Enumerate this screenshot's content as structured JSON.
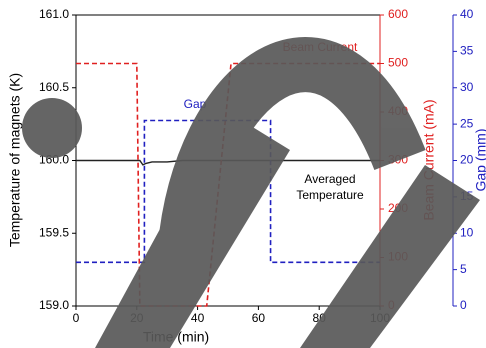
{
  "chart_data": {
    "type": "line",
    "x_label": "Time (min)",
    "y_label": "Temperature of magnets (K)",
    "y2_label": "Beam Current (mA)",
    "y3_label": "Gap (mm)",
    "xlim": [
      0,
      100
    ],
    "xticks": [
      0,
      20,
      40,
      60,
      80,
      100
    ],
    "ylim": [
      159.0,
      161.0
    ],
    "yticks": [
      {
        "value": 159.0,
        "label": "159.0"
      },
      159.5,
      {
        "value": 160.0,
        "label": "160.0"
      },
      160.5,
      {
        "value": 161.0,
        "label": "161.0"
      }
    ],
    "y2lim": [
      0,
      600
    ],
    "y2ticks": [
      0,
      100,
      200,
      300,
      400,
      500,
      600
    ],
    "y2color": "#e02020",
    "y3lim": [
      0,
      40
    ],
    "y3ticks": [
      0,
      5,
      10,
      15,
      20,
      25,
      30,
      35,
      40
    ],
    "y3color": "#2020c0",
    "series": [
      {
        "name": "Averaged Temperature",
        "color": "#222222",
        "axis": "y",
        "dash": false,
        "x": [
          0,
          5,
          10,
          15,
          20,
          21,
          22,
          23,
          25,
          28,
          30,
          35,
          40,
          45,
          50,
          55,
          60,
          65,
          70,
          75,
          80,
          85,
          90,
          95,
          100
        ],
        "values": [
          160.0,
          160.0,
          160.0,
          160.0,
          160.0,
          160.0,
          159.97,
          159.98,
          159.99,
          159.99,
          159.99,
          160.0,
          160.0,
          160.0,
          160.0,
          160.0,
          160.0,
          160.0,
          160.0,
          160.0,
          160.0,
          160.0,
          160.0,
          160.0,
          160.0
        ]
      },
      {
        "name": "Beam Current",
        "color": "#e02020",
        "axis": "y2",
        "dash": true,
        "x": [
          0,
          20,
          21,
          43,
          51,
          100
        ],
        "values": [
          500,
          500,
          0,
          0,
          500,
          500
        ]
      },
      {
        "name": "Gap",
        "color": "#2020c0",
        "axis": "y3",
        "dash": true,
        "x": [
          0,
          22.5,
          22.5,
          64,
          64,
          100
        ],
        "values": [
          6,
          6,
          25.5,
          25.5,
          6,
          6
        ]
      }
    ]
  }
}
